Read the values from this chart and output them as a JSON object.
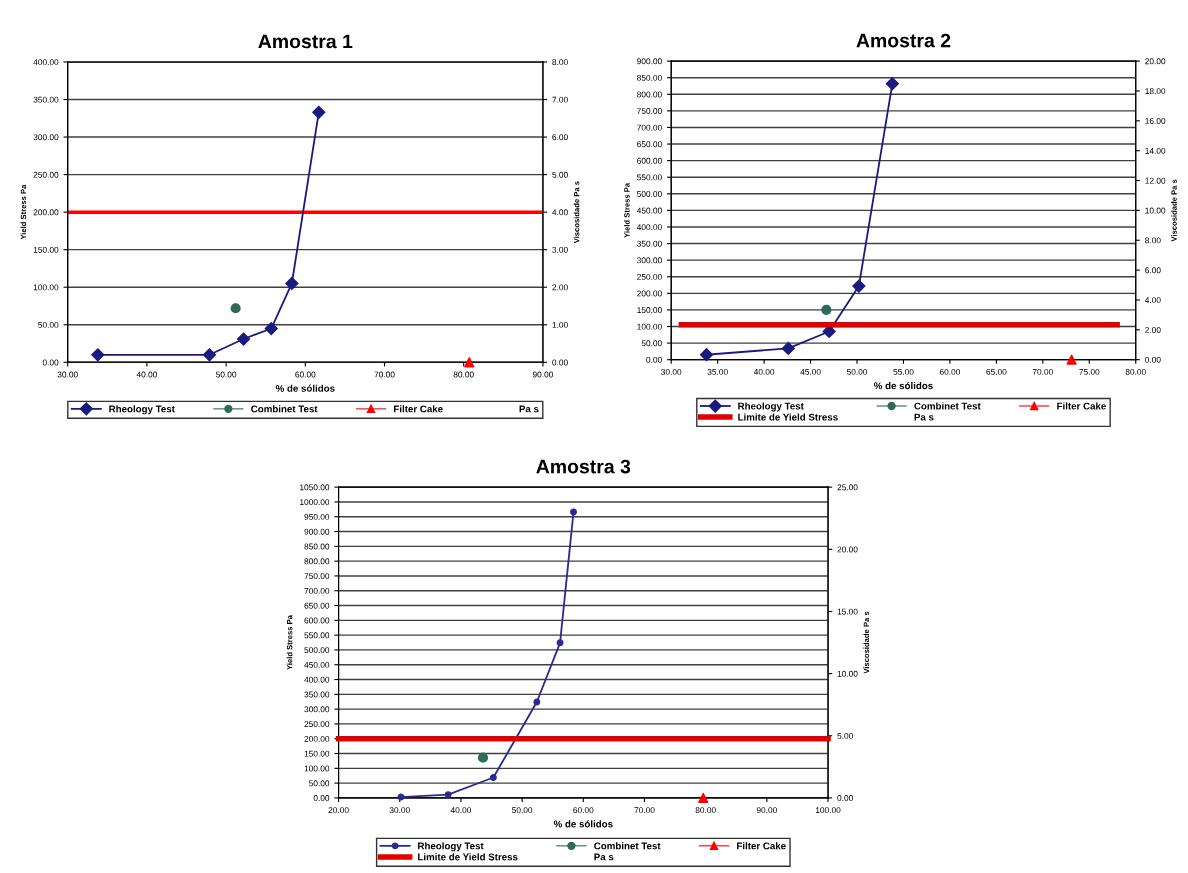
{
  "chart_data": [
    {
      "type": "line",
      "title": "Amostra 1",
      "xlabel": "% de sólidos",
      "ylabel": "Yield Stress Pa",
      "y2label": "Viscosidade Pa s",
      "xlim": [
        30,
        90
      ],
      "xticks": [
        {
          "value": 30,
          "label": "30.00"
        },
        {
          "value": 40,
          "label": "40.00"
        },
        {
          "value": 50,
          "label": "50.00"
        },
        {
          "value": 60,
          "label": "60.00"
        },
        {
          "value": 70,
          "label": "70.00"
        },
        {
          "value": 80,
          "label": "80.00"
        },
        {
          "value": 90,
          "label": "90.00"
        }
      ],
      "ylim": [
        0,
        400
      ],
      "yticks": [
        {
          "value": 0,
          "label": "0.00"
        },
        {
          "value": 50,
          "label": "50.00"
        },
        {
          "value": 100,
          "label": "100.00"
        },
        {
          "value": 150,
          "label": "150.00"
        },
        {
          "value": 200,
          "label": "200.00"
        },
        {
          "value": 250,
          "label": "250.00"
        },
        {
          "value": 300,
          "label": "300.00"
        },
        {
          "value": 350,
          "label": "350.00"
        },
        {
          "value": 400,
          "label": "400.00"
        }
      ],
      "y2lim": [
        0,
        8
      ],
      "y2ticks": [
        {
          "value": 0,
          "label": "0.00"
        },
        {
          "value": 1,
          "label": "1.00"
        },
        {
          "value": 2,
          "label": "2.00"
        },
        {
          "value": 3,
          "label": "3.00"
        },
        {
          "value": 4,
          "label": "4.00"
        },
        {
          "value": 5,
          "label": "5.00"
        },
        {
          "value": 6,
          "label": "6.00"
        },
        {
          "value": 7,
          "label": "7.00"
        },
        {
          "value": 8,
          "label": "8.00"
        }
      ],
      "grid": "y",
      "legend": "bottom",
      "ref_lines": [
        {
          "axis": "y",
          "value": 200,
          "color": "#ff0000"
        }
      ],
      "series": [
        {
          "name": "Rheology Test",
          "color": "#1a1a80",
          "marker": "diamond",
          "x": [
            33.8,
            47.9,
            52.2,
            55.7,
            58.3,
            61.7
          ],
          "values": [
            10,
            10,
            31,
            45,
            105,
            333
          ]
        },
        {
          "name": "Combinet Test",
          "type": "scatter",
          "color": "#2e6b5a",
          "marker": "circle",
          "x": [
            51.2
          ],
          "values": [
            72
          ]
        },
        {
          "name": "Filter Cake",
          "type": "scatter",
          "color": "#ff0000",
          "marker": "triangle",
          "x": [
            80.7
          ],
          "values": [
            0
          ]
        },
        {
          "name": "Pa s"
        }
      ]
    },
    {
      "type": "line",
      "title": "Amostra 2",
      "xlabel": "% de sólidos",
      "ylabel": "Yield Stress Pa",
      "y2label": "Viscosidade Pa s",
      "xlim": [
        30,
        80
      ],
      "xticks": [
        {
          "value": 30,
          "label": "30.00"
        },
        {
          "value": 35,
          "label": "35.00"
        },
        {
          "value": 40,
          "label": "40.00"
        },
        {
          "value": 45,
          "label": "45.00"
        },
        {
          "value": 50,
          "label": "50.00"
        },
        {
          "value": 55,
          "label": "55.00"
        },
        {
          "value": 60,
          "label": "60.00"
        },
        {
          "value": 65,
          "label": "65.00"
        },
        {
          "value": 70,
          "label": "70.00"
        },
        {
          "value": 75,
          "label": "75.00"
        },
        {
          "value": 80,
          "label": "80.00"
        }
      ],
      "ylim": [
        0,
        900
      ],
      "yticks": [
        {
          "value": 0,
          "label": "0.00"
        },
        {
          "value": 50,
          "label": "50.00"
        },
        {
          "value": 100,
          "label": "100.00"
        },
        {
          "value": 150,
          "label": "150.00"
        },
        {
          "value": 200,
          "label": "200.00"
        },
        {
          "value": 250,
          "label": "250.00"
        },
        {
          "value": 300,
          "label": "300.00"
        },
        {
          "value": 350,
          "label": "350.00"
        },
        {
          "value": 400,
          "label": "400.00"
        },
        {
          "value": 450,
          "label": "450.00"
        },
        {
          "value": 500,
          "label": "500.00"
        },
        {
          "value": 550,
          "label": "550.00"
        },
        {
          "value": 600,
          "label": "600.00"
        },
        {
          "value": 650,
          "label": "650.00"
        },
        {
          "value": 700,
          "label": "700.00"
        },
        {
          "value": 750,
          "label": "750.00"
        },
        {
          "value": 800,
          "label": "800.00"
        },
        {
          "value": 850,
          "label": "850.00"
        },
        {
          "value": 900,
          "label": "900.00"
        }
      ],
      "y2lim": [
        0,
        20
      ],
      "y2ticks": [
        {
          "value": 0,
          "label": "0.00"
        },
        {
          "value": 2,
          "label": "2.00"
        },
        {
          "value": 4,
          "label": "4.00"
        },
        {
          "value": 6,
          "label": "6.00"
        },
        {
          "value": 8,
          "label": "8.00"
        },
        {
          "value": 10,
          "label": "10.00"
        },
        {
          "value": 12,
          "label": "12.00"
        },
        {
          "value": 14,
          "label": "14.00"
        },
        {
          "value": 16,
          "label": "16.00"
        },
        {
          "value": 18,
          "label": "18.00"
        },
        {
          "value": 20,
          "label": "20.00"
        }
      ],
      "grid": "y",
      "legend": "bottom",
      "series": [
        {
          "name": "Rheology Test",
          "color": "#1a1a80",
          "marker": "diamond",
          "x": [
            33.8,
            42.6,
            47.0,
            50.2,
            53.8
          ],
          "values": [
            15,
            34,
            85,
            222,
            832
          ]
        },
        {
          "name": "Combinet Test",
          "type": "scatter",
          "color": "#2e6b5a",
          "marker": "circle",
          "x": [
            46.7
          ],
          "values": [
            150
          ]
        },
        {
          "name": "Filter Cake",
          "type": "scatter",
          "color": "#ff0000",
          "marker": "triangle",
          "x": [
            73.1
          ],
          "values": [
            0
          ]
        },
        {
          "name": "Limite de Yield Stress",
          "color": "#e00000",
          "x": [
            31.1,
            78.0
          ],
          "values": [
            105,
            105
          ]
        },
        {
          "name": "Pa s"
        }
      ]
    },
    {
      "type": "line",
      "title": "Amostra 3",
      "xlabel": "% de sólidos",
      "ylabel": "Yield Stress Pa",
      "y2label": "Viscosidade Pa s",
      "xlim": [
        20,
        100
      ],
      "xticks": [
        {
          "value": 20,
          "label": "20.00"
        },
        {
          "value": 30,
          "label": "30.00"
        },
        {
          "value": 40,
          "label": "40.00"
        },
        {
          "value": 50,
          "label": "50.00"
        },
        {
          "value": 60,
          "label": "60.00"
        },
        {
          "value": 70,
          "label": "70.00"
        },
        {
          "value": 80,
          "label": "80.00"
        },
        {
          "value": 90,
          "label": "90.00"
        },
        {
          "value": 100,
          "label": "100.00"
        }
      ],
      "ylim": [
        0,
        1050
      ],
      "yticks": [
        {
          "value": 0,
          "label": "0.00"
        },
        {
          "value": 50,
          "label": "50.00"
        },
        {
          "value": 100,
          "label": "100.00"
        },
        {
          "value": 150,
          "label": "150.00"
        },
        {
          "value": 200,
          "label": "200.00"
        },
        {
          "value": 250,
          "label": "250.00"
        },
        {
          "value": 300,
          "label": "300.00"
        },
        {
          "value": 350,
          "label": "350.00"
        },
        {
          "value": 400,
          "label": "400.00"
        },
        {
          "value": 450,
          "label": "450.00"
        },
        {
          "value": 500,
          "label": "500.00"
        },
        {
          "value": 550,
          "label": "550.00"
        },
        {
          "value": 600,
          "label": "600.00"
        },
        {
          "value": 650,
          "label": "650.00"
        },
        {
          "value": 700,
          "label": "700.00"
        },
        {
          "value": 750,
          "label": "750.00"
        },
        {
          "value": 800,
          "label": "800.00"
        },
        {
          "value": 850,
          "label": "850.00"
        },
        {
          "value": 900,
          "label": "900.00"
        },
        {
          "value": 950,
          "label": "950.00"
        },
        {
          "value": 1000,
          "label": "1000.00"
        },
        {
          "value": 1050,
          "label": "1050.00"
        }
      ],
      "y2lim": [
        0,
        25
      ],
      "y2ticks": [
        {
          "value": 0,
          "label": "0.00"
        },
        {
          "value": 5,
          "label": "5.00"
        },
        {
          "value": 10,
          "label": "10.00"
        },
        {
          "value": 15,
          "label": "15.00"
        },
        {
          "value": 20,
          "label": "20.00"
        },
        {
          "value": 25,
          "label": "25.00"
        }
      ],
      "grid": "y",
      "legend": "bottom",
      "series": [
        {
          "name": "Rheology Test",
          "color": "#2a2a90",
          "marker": "circle",
          "x": [
            30.2,
            37.9,
            45.3,
            52.4,
            56.2,
            58.4
          ],
          "values": [
            3,
            11,
            69,
            324,
            524,
            966
          ]
        },
        {
          "name": "Combinet Test",
          "type": "scatter",
          "color": "#2e6b5a",
          "marker": "circle",
          "x": [
            43.6
          ],
          "values": [
            136
          ]
        },
        {
          "name": "Filter Cake",
          "type": "scatter",
          "color": "#ff0000",
          "marker": "triangle",
          "x": [
            79.6
          ],
          "values": [
            0
          ]
        },
        {
          "name": "Limite de Yield Stress",
          "color": "#e00000",
          "x": [
            20,
            100
          ],
          "values": [
            200,
            200
          ]
        },
        {
          "name": "Pa s"
        }
      ]
    }
  ]
}
